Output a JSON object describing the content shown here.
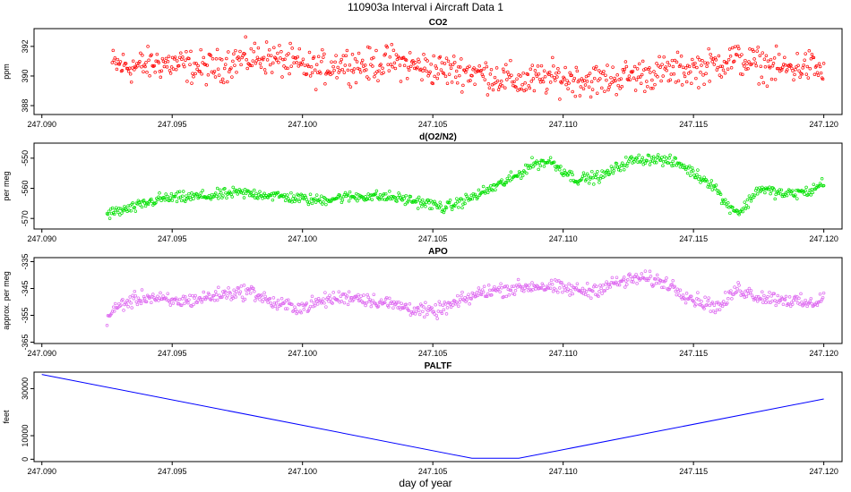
{
  "title": "110903a   Interval i Aircraft Data 1",
  "xlabel": "day of year",
  "chart_data": [
    {
      "type": "scatter",
      "title": "CO2",
      "ylabel": "ppm",
      "color": "#ff0000",
      "xlim": [
        247.0897,
        247.1207
      ],
      "ylim": [
        387.4,
        393.2
      ],
      "x_ticks": [
        "247.090",
        "247.095",
        "247.100",
        "247.105",
        "247.110",
        "247.115",
        "247.120"
      ],
      "y_ticks": [
        "388",
        "390",
        "392"
      ],
      "series": [
        {
          "name": "CO2",
          "x": [
            247.0927,
            247.0935,
            247.0945,
            247.0955,
            247.0965,
            247.0975,
            247.0985,
            247.0995,
            247.1005,
            247.1015,
            247.1025,
            247.1035,
            247.1045,
            247.1055,
            247.1065,
            247.1075,
            247.1085,
            247.1095,
            247.1105,
            247.1115,
            247.1125,
            247.1135,
            247.1145,
            247.1155,
            247.1165,
            247.1175,
            247.1185,
            247.1195,
            247.12
          ],
          "values": [
            390.8,
            390.6,
            390.9,
            390.7,
            390.5,
            391.1,
            391.3,
            390.9,
            390.4,
            390.9,
            390.7,
            391.0,
            390.6,
            390.4,
            390.3,
            389.9,
            389.6,
            389.9,
            389.8,
            389.7,
            390.0,
            390.2,
            390.4,
            390.6,
            391.2,
            390.8,
            390.5,
            390.7,
            390.2
          ],
          "spread": 1.1
        }
      ]
    },
    {
      "type": "scatter",
      "title": "d(O2/N2)",
      "ylabel": "per meg",
      "color": "#00e000",
      "xlim": [
        247.0897,
        247.1207
      ],
      "ylim": [
        -573.5,
        -545
      ],
      "x_ticks": [
        "247.090",
        "247.095",
        "247.100",
        "247.105",
        "247.110",
        "247.115",
        "247.120"
      ],
      "y_ticks": [
        "-570",
        "-560",
        "-550"
      ],
      "series": [
        {
          "name": "d(O2/N2)",
          "x": [
            247.0925,
            247.0935,
            247.0945,
            247.0955,
            247.0965,
            247.0975,
            247.0985,
            247.0995,
            247.1005,
            247.1015,
            247.1025,
            247.1035,
            247.1045,
            247.1055,
            247.1065,
            247.1075,
            247.1082,
            247.1088,
            247.1095,
            247.1105,
            247.1115,
            247.1125,
            247.1135,
            247.1145,
            247.1152,
            247.1158,
            247.1162,
            247.1168,
            247.1175,
            247.1185,
            247.1195,
            247.12
          ],
          "values": [
            -568.5,
            -566.5,
            -563.5,
            -563,
            -562.5,
            -561.5,
            -562,
            -563,
            -564,
            -563,
            -562.5,
            -563,
            -564.5,
            -566.5,
            -563,
            -559,
            -556,
            -552,
            -551,
            -557,
            -556,
            -551,
            -550,
            -552,
            -556,
            -559,
            -565,
            -568,
            -560,
            -562,
            -561,
            -558
          ],
          "spread": 1.8
        }
      ]
    },
    {
      "type": "scatter",
      "title": "APO",
      "ylabel": "approx. per meg",
      "color": "#dd66f0",
      "xlim": [
        247.0897,
        247.1207
      ],
      "ylim": [
        -365.5,
        -333.5
      ],
      "x_ticks": [
        "247.090",
        "247.095",
        "247.100",
        "247.105",
        "247.110",
        "247.115",
        "247.120"
      ],
      "y_ticks": [
        "-365",
        "-355",
        "-345",
        "-335"
      ],
      "series": [
        {
          "name": "APO",
          "x": [
            247.0925,
            247.093,
            247.094,
            247.095,
            247.096,
            247.097,
            247.098,
            247.099,
            247.1,
            247.101,
            247.102,
            247.103,
            247.104,
            247.105,
            247.106,
            247.107,
            247.108,
            247.109,
            247.11,
            247.111,
            247.112,
            247.113,
            247.114,
            247.115,
            247.116,
            247.1167,
            247.1175,
            247.1185,
            247.1195,
            247.12
          ],
          "values": [
            -356,
            -351,
            -348,
            -350,
            -349,
            -347,
            -346,
            -351,
            -352,
            -349,
            -348,
            -350,
            -352,
            -354,
            -350,
            -346,
            -345,
            -344,
            -345,
            -346,
            -343,
            -341,
            -343,
            -349,
            -352,
            -345,
            -348,
            -349,
            -351,
            -348
          ],
          "spread": 2.6
        }
      ]
    },
    {
      "type": "line",
      "title": "PALTF",
      "ylabel": "feet",
      "color": "#0000ff",
      "xlim": [
        247.0897,
        247.1207
      ],
      "ylim": [
        -1000,
        37000
      ],
      "x_ticks": [
        "247.090",
        "247.095",
        "247.100",
        "247.105",
        "247.110",
        "247.115",
        "247.120"
      ],
      "y_ticks": [
        "0",
        "10000",
        "30000"
      ],
      "series": [
        {
          "name": "PALTF",
          "x": [
            247.09,
            247.1065,
            247.1083,
            247.12
          ],
          "values": [
            36000,
            400,
            400,
            25600
          ]
        }
      ]
    }
  ]
}
